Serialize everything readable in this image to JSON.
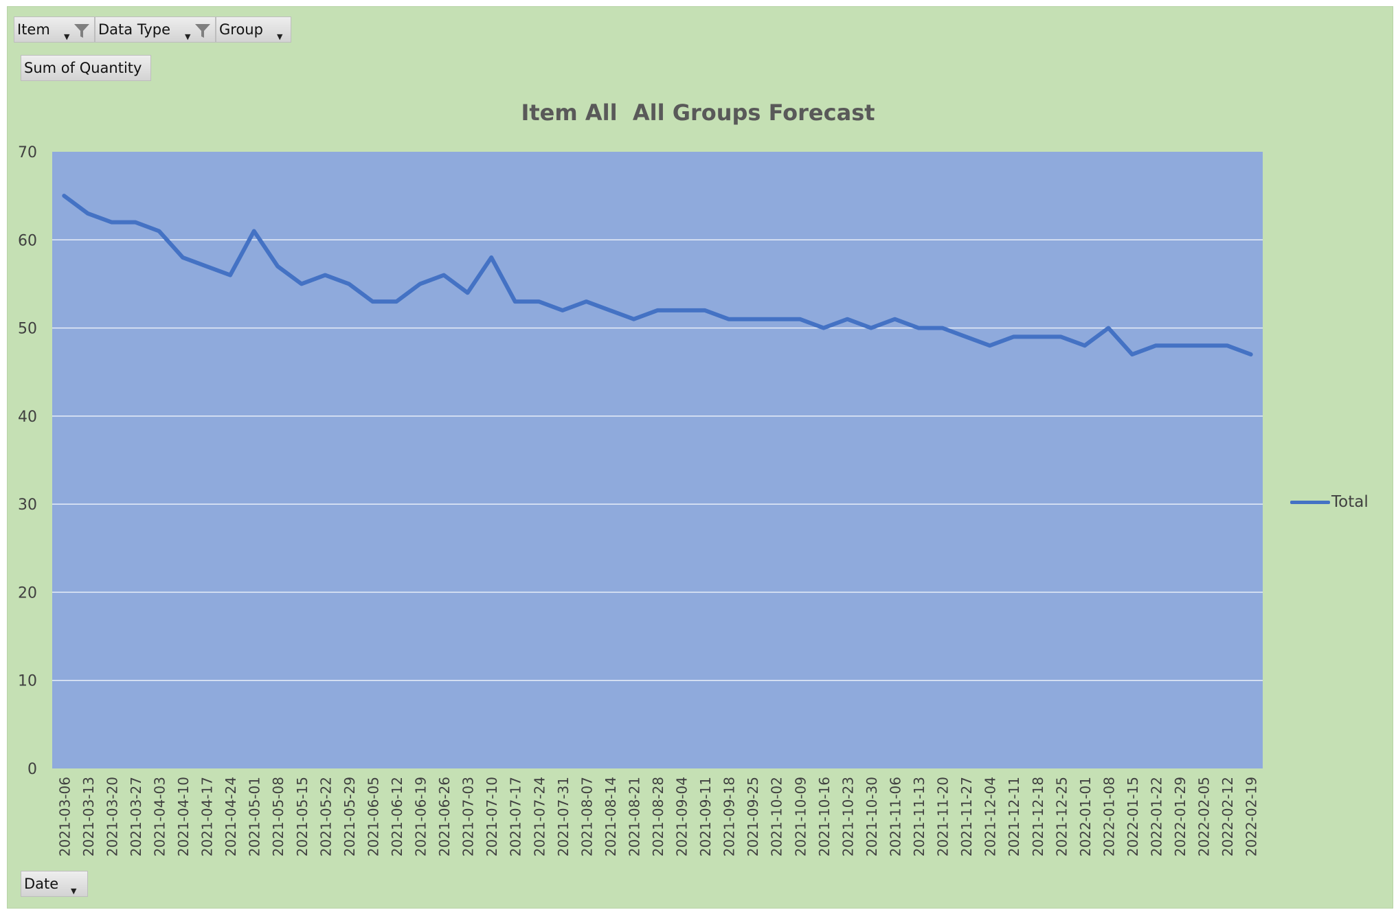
{
  "filters": {
    "item_label": "Item",
    "data_type_label": "Data Type",
    "group_label": "Group",
    "values_label": "Sum of Quantity",
    "axis_field_label": "Date",
    "dropdown_icon": "dropdown-arrow-icon",
    "filter_icon": "funnel-icon"
  },
  "colors": {
    "background": "#c5e0b4",
    "plot_area": "#8faadc",
    "line": "#4472c4",
    "gridline": "#e8eef8"
  },
  "chart_data": {
    "type": "line",
    "title": "Item All  All Groups Forecast",
    "xlabel": "",
    "ylabel": "",
    "ylim": [
      0,
      70
    ],
    "yticks": [
      0,
      10,
      20,
      30,
      40,
      50,
      60,
      70
    ],
    "grid": true,
    "legend_position": "right",
    "x": [
      "2021-03-06",
      "2021-03-13",
      "2021-03-20",
      "2021-03-27",
      "2021-04-03",
      "2021-04-10",
      "2021-04-17",
      "2021-04-24",
      "2021-05-01",
      "2021-05-08",
      "2021-05-15",
      "2021-05-22",
      "2021-05-29",
      "2021-06-05",
      "2021-06-12",
      "2021-06-19",
      "2021-06-26",
      "2021-07-03",
      "2021-07-10",
      "2021-07-17",
      "2021-07-24",
      "2021-07-31",
      "2021-08-07",
      "2021-08-14",
      "2021-08-21",
      "2021-08-28",
      "2021-09-04",
      "2021-09-11",
      "2021-09-18",
      "2021-09-25",
      "2021-10-02",
      "2021-10-09",
      "2021-10-16",
      "2021-10-23",
      "2021-10-30",
      "2021-11-06",
      "2021-11-13",
      "2021-11-20",
      "2021-11-27",
      "2021-12-04",
      "2021-12-11",
      "2021-12-18",
      "2021-12-25",
      "2022-01-01",
      "2022-01-08",
      "2022-01-15",
      "2022-01-22",
      "2022-01-29",
      "2022-02-05",
      "2022-02-12",
      "2022-02-19"
    ],
    "series": [
      {
        "name": "Total",
        "values": [
          65,
          63,
          62,
          62,
          61,
          58,
          57,
          56,
          61,
          57,
          55,
          56,
          55,
          53,
          53,
          55,
          56,
          54,
          58,
          53,
          53,
          52,
          53,
          52,
          51,
          52,
          52,
          52,
          51,
          51,
          51,
          51,
          50,
          51,
          50,
          51,
          50,
          50,
          49,
          48,
          49,
          49,
          49,
          48,
          50,
          47,
          48,
          48,
          48,
          48,
          47
        ]
      }
    ]
  }
}
